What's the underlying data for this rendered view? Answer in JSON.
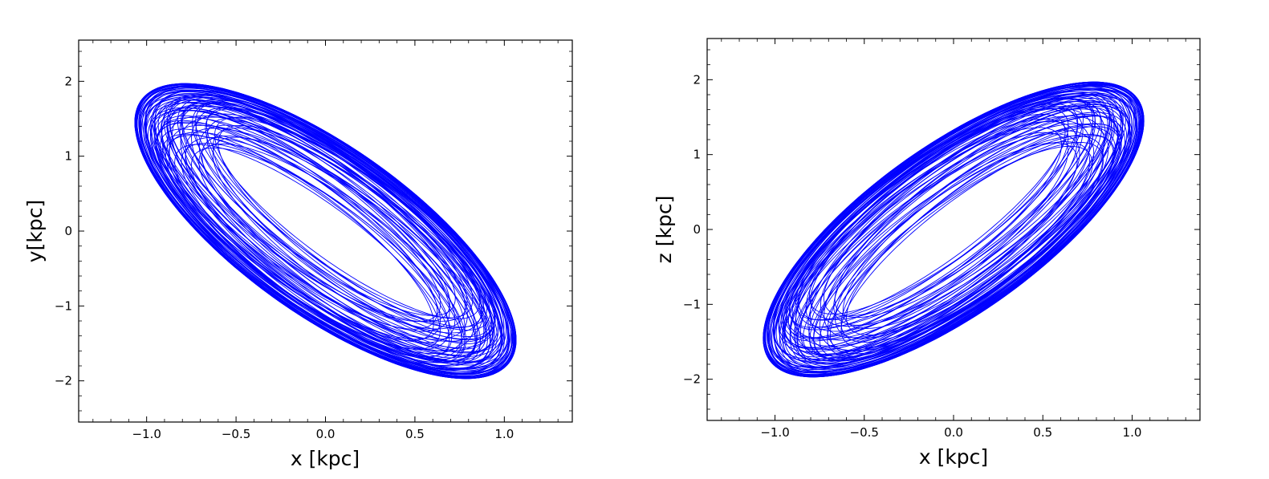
{
  "chart_data": [
    {
      "type": "line",
      "title": "",
      "xlabel": "x [kpc]",
      "ylabel": "y[kpc]",
      "xlim": [
        -1.38,
        1.38
      ],
      "ylim": [
        -2.55,
        2.55
      ],
      "xticks": [
        -1.0,
        -0.5,
        0.0,
        0.5,
        1.0
      ],
      "xtick_labels": [
        "−1.0",
        "−0.5",
        "0.0",
        "0.5",
        "1.0"
      ],
      "yticks": [
        -2,
        -1,
        0,
        1,
        2
      ],
      "ytick_labels": [
        "−2",
        "−1",
        "0",
        "1",
        "2"
      ],
      "grid": false,
      "series": [
        {
          "kind": "rosette orbit (tilted ring, major axis from upper-left to lower-right)",
          "color": "#0000ff",
          "outer_extent_x": [
            -1.38,
            1.38
          ],
          "outer_extent_y": [
            -2.55,
            2.55
          ],
          "inner_hole_x": [
            -0.78,
            0.78
          ],
          "inner_hole_y": [
            -1.45,
            1.45
          ],
          "orientation": "negative"
        }
      ]
    },
    {
      "type": "line",
      "title": "",
      "xlabel": "x [kpc]",
      "ylabel": "z [kpc]",
      "xlim": [
        -1.38,
        1.38
      ],
      "ylim": [
        -2.55,
        2.55
      ],
      "xticks": [
        -1.0,
        -0.5,
        0.0,
        0.5,
        1.0
      ],
      "xtick_labels": [
        "−1.0",
        "−0.5",
        "0.0",
        "0.5",
        "1.0"
      ],
      "yticks": [
        -2,
        -1,
        0,
        1,
        2
      ],
      "ytick_labels": [
        "−2",
        "−1",
        "0",
        "1",
        "2"
      ],
      "grid": false,
      "series": [
        {
          "kind": "rosette orbit (tilted ring, major axis from lower-left to upper-right)",
          "color": "#0000ff",
          "outer_extent_x": [
            -1.38,
            1.38
          ],
          "outer_extent_y": [
            -2.55,
            2.55
          ],
          "inner_hole_x": [
            -0.78,
            0.78
          ],
          "inner_hole_y": [
            -1.45,
            1.45
          ],
          "orientation": "positive"
        }
      ]
    }
  ]
}
